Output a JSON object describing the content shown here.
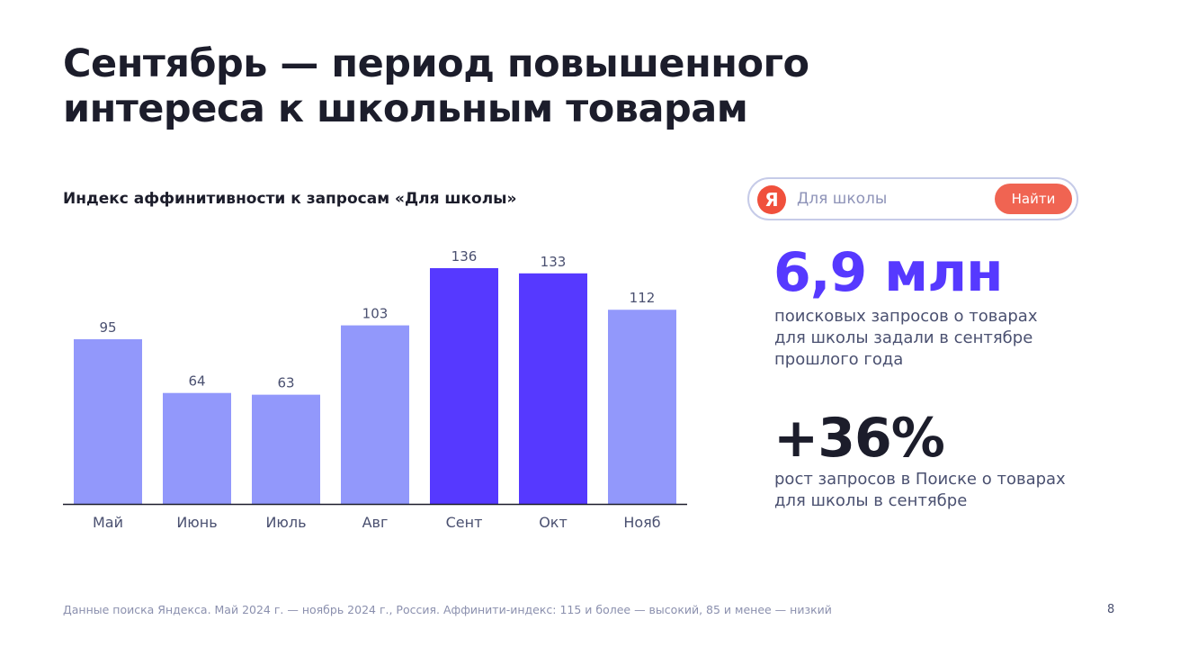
{
  "page": {
    "title_line1": "Сентябрь — период повышенного",
    "title_line2": "интереса к школьным товарам",
    "footnote": "Данные поиска Яндекса. Май 2024 г. —  ноябрь 2024 г., Россия. Аффинити-индекс: 115 и более — высокий, 85 и менее — низкий",
    "page_number": "8"
  },
  "search": {
    "logo_letter": "Я",
    "query": "Для школы",
    "button_label": "Найти",
    "logo_color": "#f0503c",
    "button_color": "#f06452"
  },
  "stats": [
    {
      "value": "6,9 млн",
      "desc_lines": [
        "поисковых запросов о товарах",
        "для школы задали в сентябре",
        "прошлого года"
      ]
    },
    {
      "value": "+36%",
      "desc_lines": [
        "рост запросов в Поиске о товарах",
        "для школы в сентябре"
      ]
    }
  ],
  "chart_data": {
    "type": "bar",
    "title": "Индекс аффинитивности к запросам «Для школы»",
    "categories": [
      "Май",
      "Июнь",
      "Июль",
      "Авг",
      "Сент",
      "Окт",
      "Нояб"
    ],
    "values": [
      95,
      64,
      63,
      103,
      136,
      133,
      112
    ],
    "highlighted": [
      false,
      false,
      false,
      false,
      true,
      true,
      false
    ],
    "data_labels": true,
    "grid": false,
    "ylim": [
      0,
      136
    ],
    "colors": {
      "normal": "#9298fb",
      "highlight": "#5639ff",
      "axis": "#1c1d2b",
      "label": "#4a5070"
    }
  }
}
